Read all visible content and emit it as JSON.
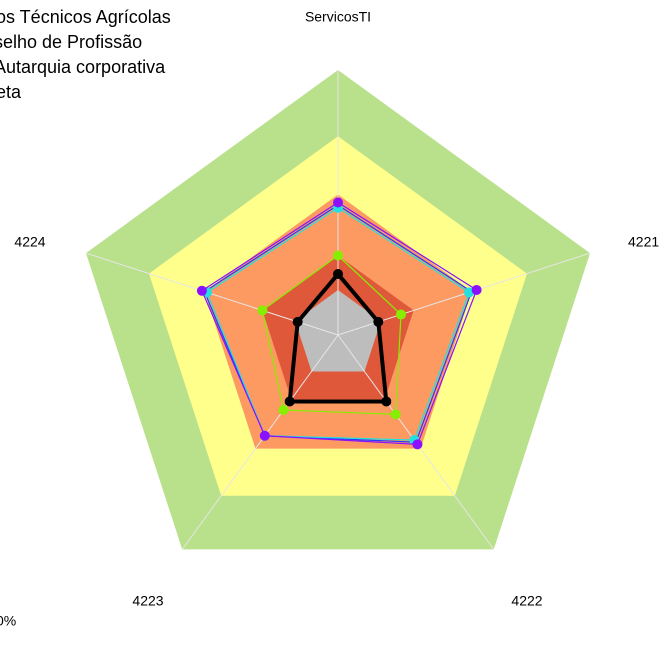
{
  "chart_data": {
    "type": "radar",
    "categories": [
      "ServicosTI",
      "4221",
      "4222",
      "4223",
      "4224"
    ],
    "ylim": [
      0,
      100
    ],
    "bands": [
      {
        "value": 100,
        "color": "#b9e08a"
      },
      {
        "value": 75,
        "color": "#ffff8c"
      },
      {
        "value": 53,
        "color": "#fc9a62"
      },
      {
        "value": 30,
        "color": "#e0583a"
      },
      {
        "value": 17,
        "color": "#bdbdbd"
      }
    ],
    "series": [
      {
        "color": "#1f3cff",
        "values": [
          49,
          53,
          50,
          47,
          53
        ]
      },
      {
        "color": "#22e0e0",
        "values": [
          48,
          52,
          49,
          47,
          52
        ]
      },
      {
        "color": "#8a10ff",
        "values": [
          50,
          55,
          51,
          47,
          54
        ]
      },
      {
        "color": "#88ee00",
        "values": [
          30,
          25,
          37,
          35,
          30
        ]
      },
      {
        "color": "#000000",
        "values": [
          23,
          16,
          31,
          31,
          16
        ]
      }
    ],
    "legend_text": [
      "os Técnicos Agrícolas",
      "selho de Profissão",
      "Autarquia corporativa",
      "eta"
    ],
    "footnote": "0%"
  }
}
